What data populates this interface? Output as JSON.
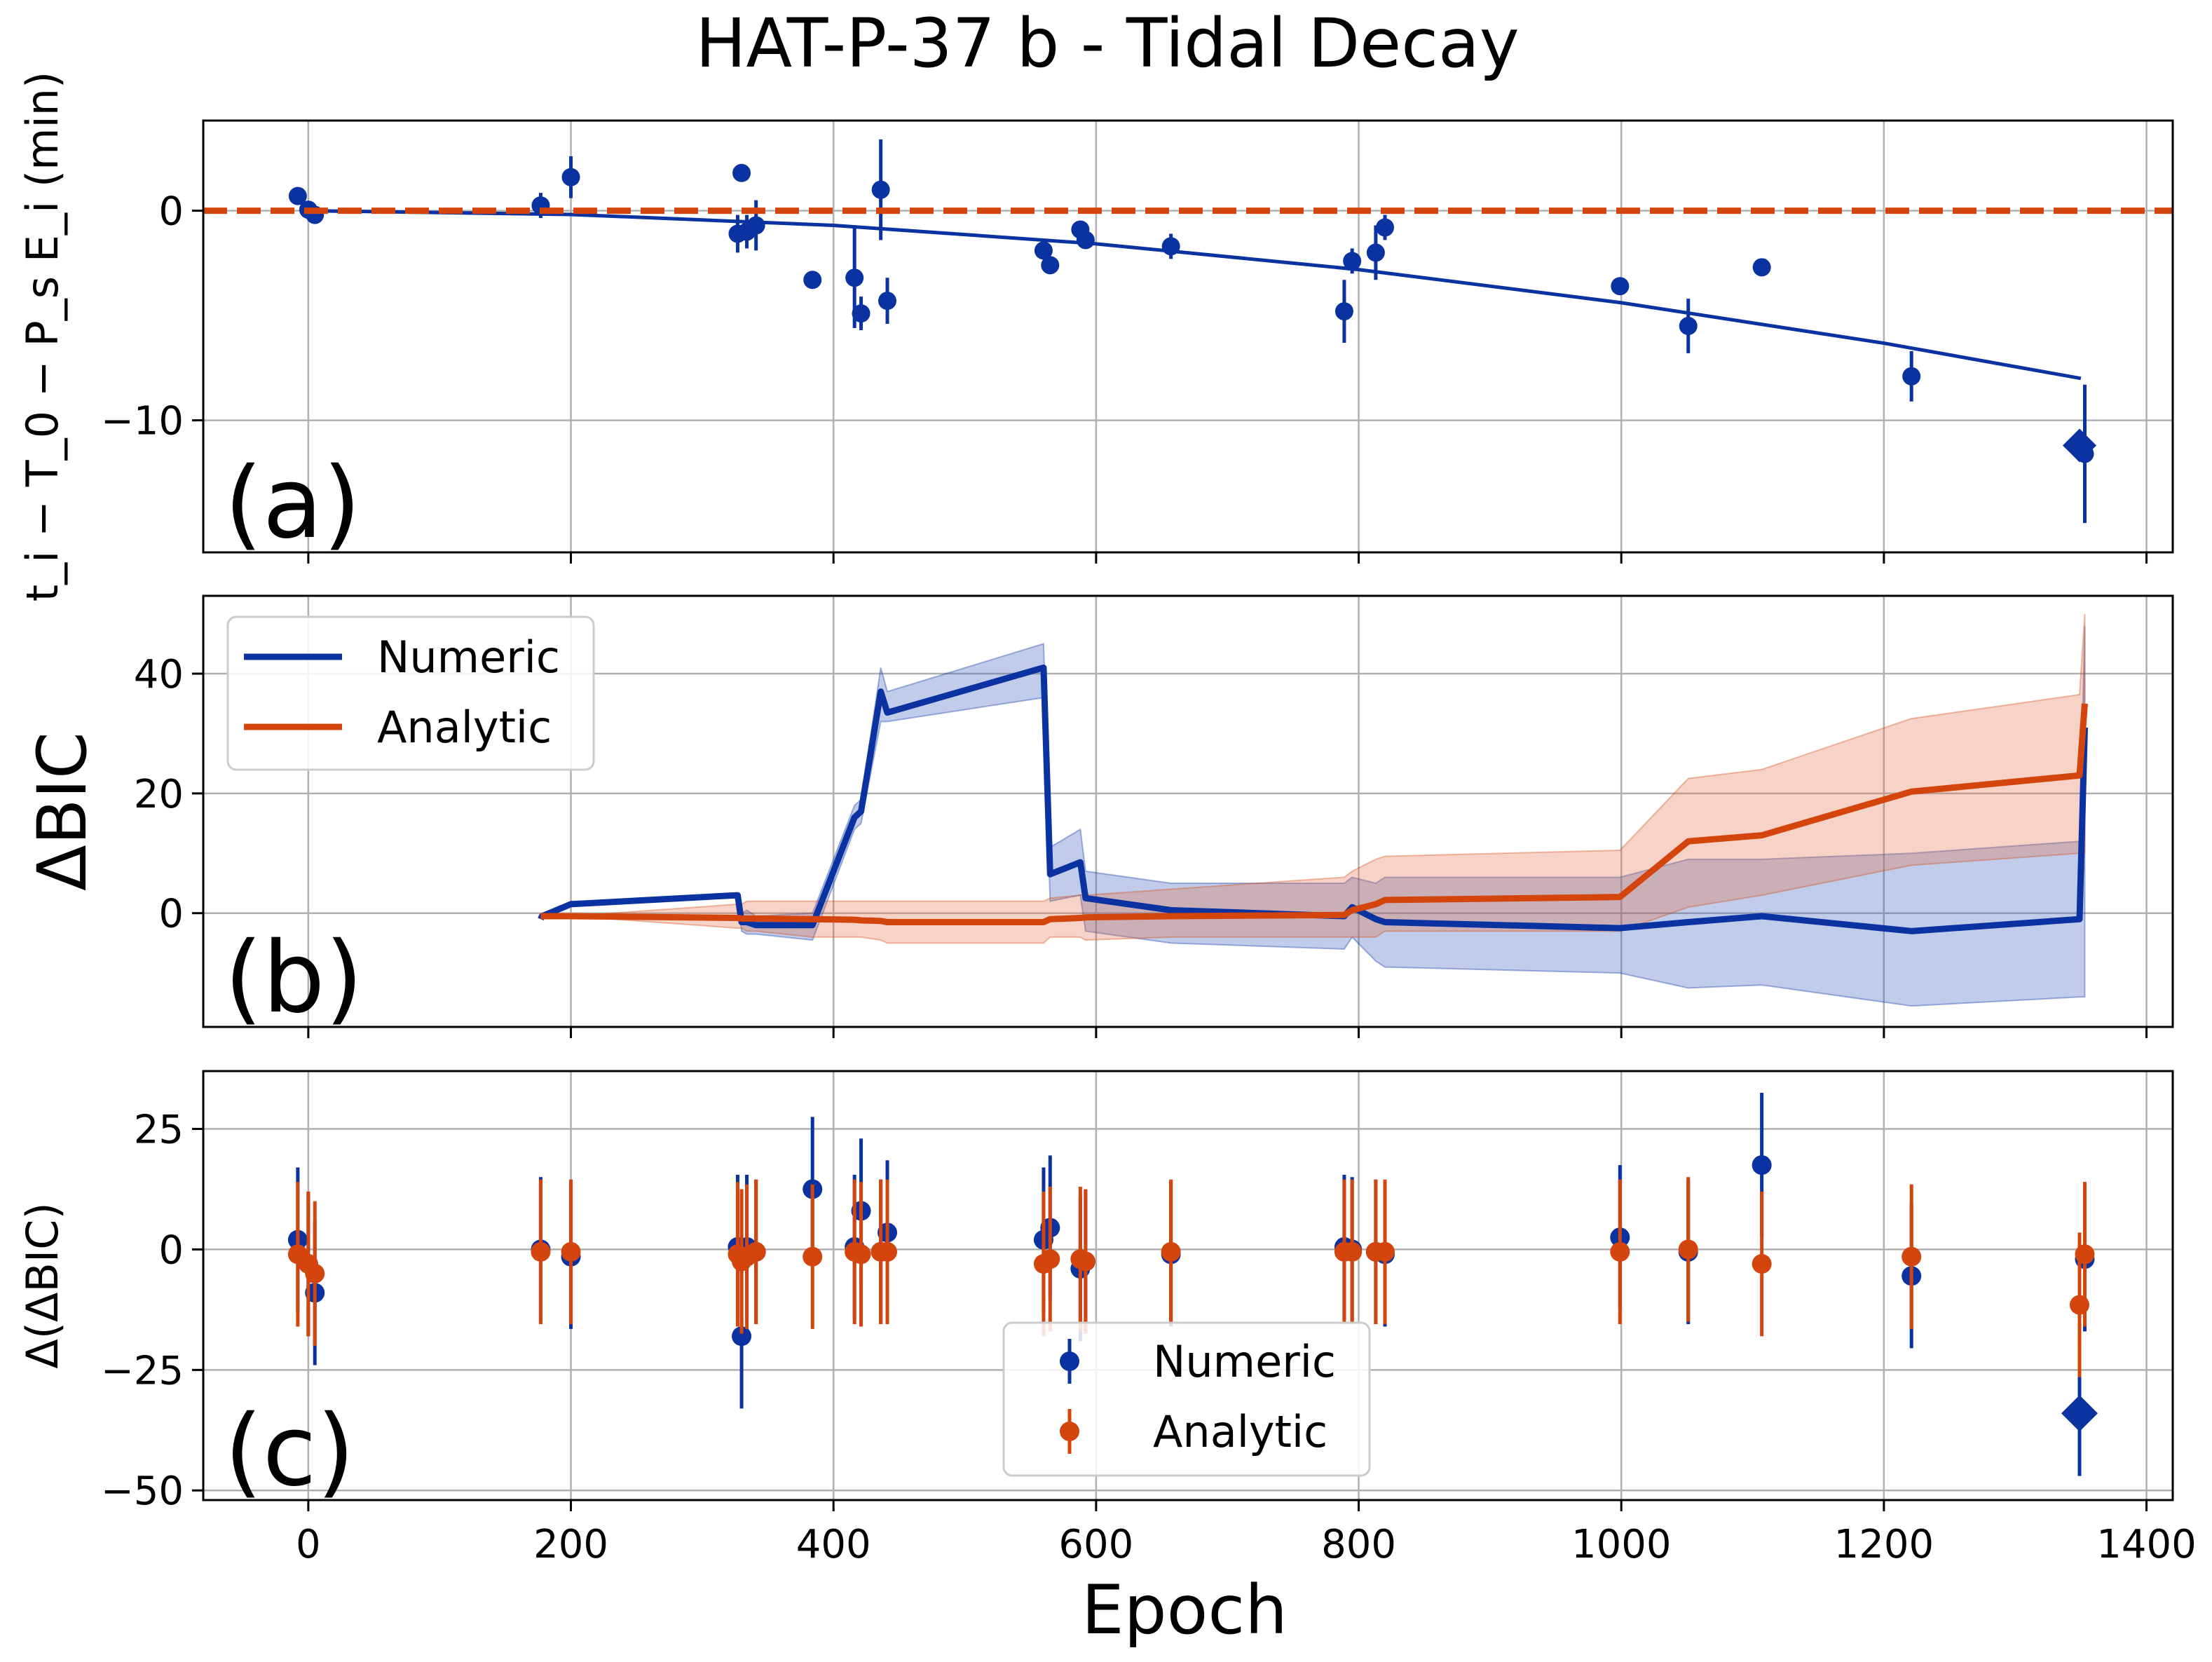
{
  "title": "HAT-P-37 b - Tidal Decay",
  "xlabel": "Epoch",
  "colors": {
    "numeric": "#0a32a0",
    "analytic": "#d4450d",
    "grid": "#b0b0b0",
    "axes": "#000000"
  },
  "chart_data": [
    {
      "type": "scatter",
      "panel": "a",
      "panel_label": "(a)",
      "ylabel": "t_i − T_0 − P_s E_i (min)",
      "xlim": [
        -80,
        1420
      ],
      "ylim": [
        -16.3,
        4.3
      ],
      "xticks": [
        0,
        200,
        400,
        600,
        800,
        1000,
        1200,
        1400
      ],
      "yticks": [
        0,
        -10
      ],
      "ytick_labels": [
        "0",
        "−10"
      ],
      "zero_line": {
        "style": "dashed",
        "color": "#d4450d",
        "y": 0
      },
      "model_curve": {
        "name": "tidal decay model",
        "x": [
          0,
          200,
          400,
          600,
          800,
          1000,
          1200,
          1350
        ],
        "y": [
          0,
          -0.18,
          -0.7,
          -1.58,
          -2.81,
          -4.39,
          -6.32,
          -8.0
        ]
      },
      "points": [
        {
          "x": -8,
          "y": 0.7,
          "err": 0.3
        },
        {
          "x": 0,
          "y": 0.05,
          "err": 0.25
        },
        {
          "x": 5,
          "y": -0.2,
          "err": 0.3
        },
        {
          "x": 177,
          "y": 0.25,
          "err": 0.6
        },
        {
          "x": 200,
          "y": 1.6,
          "err": 1.0
        },
        {
          "x": 327,
          "y": -1.1,
          "err": 0.9
        },
        {
          "x": 330,
          "y": 1.8,
          "err": 0.3
        },
        {
          "x": 334,
          "y": -1.0,
          "err": 0.8
        },
        {
          "x": 341,
          "y": -0.7,
          "err": 1.2
        },
        {
          "x": 384,
          "y": -3.3,
          "err": 0.3
        },
        {
          "x": 416,
          "y": -3.2,
          "err": 2.4
        },
        {
          "x": 421,
          "y": -4.9,
          "err": 0.8
        },
        {
          "x": 436,
          "y": 1.0,
          "err": 2.4
        },
        {
          "x": 441,
          "y": -4.3,
          "err": 1.1
        },
        {
          "x": 560,
          "y": -1.9,
          "err": 0.3
        },
        {
          "x": 565,
          "y": -2.6,
          "err": 0.4
        },
        {
          "x": 588,
          "y": -0.9,
          "err": 0.4
        },
        {
          "x": 592,
          "y": -1.4,
          "err": 0.4
        },
        {
          "x": 657,
          "y": -1.7,
          "err": 0.6
        },
        {
          "x": 789,
          "y": -4.8,
          "err": 1.5
        },
        {
          "x": 795,
          "y": -2.4,
          "err": 0.6
        },
        {
          "x": 813,
          "y": -2.0,
          "err": 1.3
        },
        {
          "x": 820,
          "y": -0.8,
          "err": 0.6
        },
        {
          "x": 999,
          "y": -3.6,
          "err": 0.3
        },
        {
          "x": 1051,
          "y": -5.5,
          "err": 1.3
        },
        {
          "x": 1107,
          "y": -2.7,
          "err": 0.4
        },
        {
          "x": 1221,
          "y": -7.9,
          "err": 1.2
        },
        {
          "x": 1353,
          "y": -11.6,
          "err": 3.3
        }
      ],
      "highlight": {
        "marker": "diamond",
        "x": 1349,
        "y": -11.2
      }
    },
    {
      "type": "line",
      "panel": "b",
      "panel_label": "(b)",
      "ylabel": "ΔBIC",
      "xlim": [
        -80,
        1420
      ],
      "ylim": [
        -19,
        53
      ],
      "xticks": [
        0,
        200,
        400,
        600,
        800,
        1000,
        1200,
        1400
      ],
      "yticks": [
        0,
        20,
        40
      ],
      "ytick_labels": [
        "0",
        "20",
        "40"
      ],
      "legend": {
        "placement": "top-left",
        "entries": [
          "Numeric",
          "Analytic"
        ]
      },
      "series": [
        {
          "name": "Numeric",
          "x": [
            177,
            178,
            200,
            327,
            330,
            334,
            341,
            384,
            416,
            421,
            436,
            441,
            560,
            565,
            588,
            592,
            657,
            789,
            795,
            813,
            820,
            999,
            1051,
            1107,
            1221,
            1349,
            1353
          ],
          "y": [
            -1,
            -0.5,
            1.5,
            3,
            -1.5,
            -1.5,
            -2,
            -2,
            16,
            17,
            37,
            33.5,
            41,
            6.5,
            8.5,
            2.5,
            0.5,
            -0.5,
            1,
            -1,
            -1.5,
            -2.5,
            -1.5,
            -0.5,
            -3,
            -1,
            31
          ],
          "lower": [
            -1,
            -0.5,
            1.5,
            3,
            -3,
            -3.5,
            -3.5,
            -4.5,
            14,
            15,
            32,
            32,
            36,
            2,
            3,
            -3,
            -5,
            -6,
            -4,
            -8,
            -9,
            -10,
            -12.5,
            -12,
            -15.5,
            -14,
            -14
          ],
          "upper": [
            -1,
            -0.5,
            1.5,
            3,
            0,
            0.5,
            -0.5,
            0,
            18,
            19,
            41,
            37,
            45,
            11,
            14,
            7,
            5,
            5,
            6,
            5,
            6,
            6,
            9,
            9,
            10,
            12,
            48
          ]
        },
        {
          "name": "Analytic",
          "x": [
            177,
            200,
            327,
            330,
            334,
            341,
            384,
            416,
            421,
            436,
            441,
            560,
            565,
            588,
            592,
            657,
            789,
            795,
            813,
            820,
            999,
            1051,
            1107,
            1221,
            1349,
            1353
          ],
          "y": [
            -0.5,
            -0.5,
            -0.8,
            -0.9,
            -0.9,
            -0.9,
            -1.0,
            -1.1,
            -1.2,
            -1.3,
            -1.5,
            -1.5,
            -1.0,
            -0.8,
            -0.7,
            -0.5,
            -0.3,
            0.5,
            1.5,
            2.2,
            2.7,
            12,
            13,
            20.3,
            23,
            35
          ],
          "lower": [
            -0.5,
            -0.5,
            -2.5,
            -2.5,
            -3,
            -3,
            -4,
            -4,
            -4,
            -4.5,
            -5,
            -5,
            -4,
            -4,
            -4.5,
            -4,
            -4,
            -4,
            -4,
            -3,
            -3,
            1,
            3,
            8,
            10,
            10
          ],
          "upper": [
            -0.5,
            -0.5,
            1.5,
            1.5,
            2,
            2,
            2,
            2,
            2,
            2,
            2,
            2,
            2.5,
            3,
            3,
            4,
            6,
            7,
            9,
            9.5,
            10.5,
            22.5,
            24,
            32.5,
            36.5,
            50
          ]
        }
      ]
    },
    {
      "type": "scatter",
      "panel": "c",
      "panel_label": "(c)",
      "ylabel": "Δ(ΔBIC)",
      "xlim": [
        -80,
        1420
      ],
      "ylim": [
        -52,
        37
      ],
      "xticks": [
        0,
        200,
        400,
        600,
        800,
        1000,
        1200,
        1400
      ],
      "xtick_labels": [
        "0",
        "200",
        "400",
        "600",
        "800",
        "1000",
        "1200",
        "1400"
      ],
      "yticks": [
        25,
        0,
        -25,
        -50
      ],
      "ytick_labels": [
        "25",
        "0",
        "−25",
        "−50"
      ],
      "legend": {
        "placement": "bottom-center",
        "entries": [
          "Numeric",
          "Analytic"
        ]
      },
      "series": [
        {
          "name": "Numeric",
          "points": [
            {
              "x": -8,
              "y": 2,
              "err": 15
            },
            {
              "x": 0,
              "y": -3,
              "err": 15
            },
            {
              "x": 5,
              "y": -9,
              "err": 15
            },
            {
              "x": 177,
              "y": 0,
              "err": 15
            },
            {
              "x": 200,
              "y": -1.5,
              "err": 15
            },
            {
              "x": 327,
              "y": 0.5,
              "err": 15
            },
            {
              "x": 330,
              "y": -18,
              "err": 15
            },
            {
              "x": 334,
              "y": 0.5,
              "err": 15
            },
            {
              "x": 341,
              "y": -0.5,
              "err": 15
            },
            {
              "x": 384,
              "y": 12.5,
              "err": 15
            },
            {
              "x": 416,
              "y": 0.5,
              "err": 15
            },
            {
              "x": 421,
              "y": 8,
              "err": 15
            },
            {
              "x": 436,
              "y": -0.5,
              "err": 15
            },
            {
              "x": 441,
              "y": 3.5,
              "err": 15
            },
            {
              "x": 560,
              "y": 2,
              "err": 15
            },
            {
              "x": 565,
              "y": 4.5,
              "err": 15
            },
            {
              "x": 588,
              "y": -4,
              "err": 15
            },
            {
              "x": 592,
              "y": -2.5,
              "err": 15
            },
            {
              "x": 657,
              "y": -1,
              "err": 15
            },
            {
              "x": 789,
              "y": 0.5,
              "err": 15
            },
            {
              "x": 795,
              "y": 0,
              "err": 15
            },
            {
              "x": 813,
              "y": -0.5,
              "err": 15
            },
            {
              "x": 820,
              "y": -1,
              "err": 15
            },
            {
              "x": 999,
              "y": 2.5,
              "err": 15
            },
            {
              "x": 1051,
              "y": -0.5,
              "err": 15
            },
            {
              "x": 1107,
              "y": 17.5,
              "err": 15
            },
            {
              "x": 1221,
              "y": -5.5,
              "err": 15
            },
            {
              "x": 1353,
              "y": -2,
              "err": 15
            }
          ],
          "highlight": {
            "marker": "diamond",
            "x": 1349,
            "y": -34,
            "err": 13
          }
        },
        {
          "name": "Analytic",
          "points": [
            {
              "x": -8,
              "y": -1,
              "err": 15
            },
            {
              "x": 0,
              "y": -3,
              "err": 15
            },
            {
              "x": 5,
              "y": -5,
              "err": 15
            },
            {
              "x": 177,
              "y": -0.5,
              "err": 15
            },
            {
              "x": 200,
              "y": -0.5,
              "err": 15
            },
            {
              "x": 327,
              "y": -1,
              "err": 15
            },
            {
              "x": 330,
              "y": -2.5,
              "err": 15
            },
            {
              "x": 334,
              "y": -1.5,
              "err": 15
            },
            {
              "x": 341,
              "y": -0.5,
              "err": 15
            },
            {
              "x": 384,
              "y": -1.5,
              "err": 15
            },
            {
              "x": 416,
              "y": -0.5,
              "err": 15
            },
            {
              "x": 421,
              "y": -1,
              "err": 15
            },
            {
              "x": 436,
              "y": -0.5,
              "err": 15
            },
            {
              "x": 441,
              "y": -0.5,
              "err": 15
            },
            {
              "x": 560,
              "y": -3,
              "err": 15
            },
            {
              "x": 565,
              "y": -2,
              "err": 15
            },
            {
              "x": 588,
              "y": -2,
              "err": 15
            },
            {
              "x": 592,
              "y": -2.5,
              "err": 15
            },
            {
              "x": 657,
              "y": -0.5,
              "err": 15
            },
            {
              "x": 789,
              "y": -0.5,
              "err": 15
            },
            {
              "x": 795,
              "y": -0.5,
              "err": 15
            },
            {
              "x": 813,
              "y": -0.5,
              "err": 15
            },
            {
              "x": 820,
              "y": -0.5,
              "err": 15
            },
            {
              "x": 999,
              "y": -0.5,
              "err": 15
            },
            {
              "x": 1051,
              "y": 0,
              "err": 15
            },
            {
              "x": 1107,
              "y": -3,
              "err": 15
            },
            {
              "x": 1221,
              "y": -1.5,
              "err": 15
            },
            {
              "x": 1349,
              "y": -11.5,
              "err": 15
            },
            {
              "x": 1353,
              "y": -1,
              "err": 15
            }
          ]
        }
      ]
    }
  ]
}
